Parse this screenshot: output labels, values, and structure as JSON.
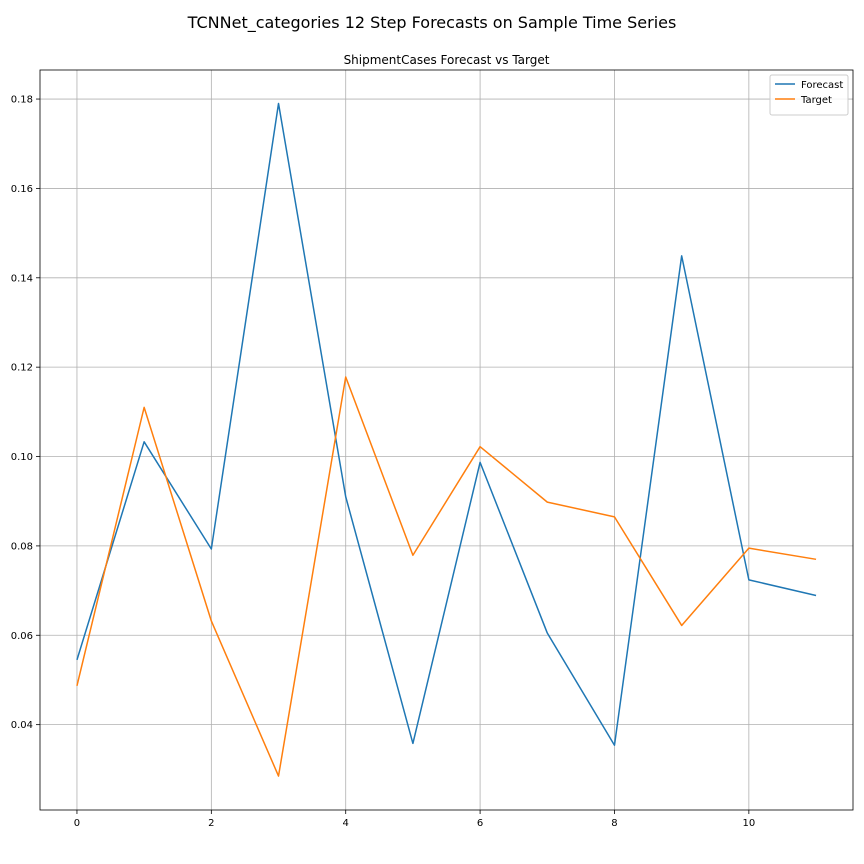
{
  "figure": {
    "suptitle": "TCNNet_categories 12 Step Forecasts on Sample Time Series"
  },
  "chart_data": {
    "type": "line",
    "title": "ShipmentCases Forecast vs Target",
    "xlabel": "",
    "ylabel": "",
    "x": [
      0,
      1,
      2,
      3,
      4,
      5,
      6,
      7,
      8,
      9,
      10,
      11
    ],
    "series": [
      {
        "name": "Forecast",
        "color": "#1f77b4",
        "values": [
          0.0545,
          0.1033,
          0.0793,
          0.179,
          0.091,
          0.0358,
          0.0987,
          0.0605,
          0.0354,
          0.1449,
          0.0724,
          0.0689
        ]
      },
      {
        "name": "Target",
        "color": "#ff7f0e",
        "values": [
          0.0487,
          0.111,
          0.0632,
          0.0285,
          0.1178,
          0.0779,
          0.1022,
          0.0898,
          0.0865,
          0.0622,
          0.0795,
          0.077
        ]
      }
    ],
    "xlim": [
      -0.55,
      11.55
    ],
    "ylim": [
      0.0209,
      0.1865
    ],
    "xticks": [
      0,
      2,
      4,
      6,
      8,
      10
    ],
    "xtick_labels": [
      "0",
      "2",
      "4",
      "6",
      "8",
      "10"
    ],
    "yticks": [
      0.04,
      0.06,
      0.08,
      0.1,
      0.12,
      0.14,
      0.16,
      0.18
    ],
    "ytick_labels": [
      "0.04",
      "0.06",
      "0.08",
      "0.10",
      "0.12",
      "0.14",
      "0.16",
      "0.18"
    ],
    "grid": true,
    "legend": "top-right"
  }
}
